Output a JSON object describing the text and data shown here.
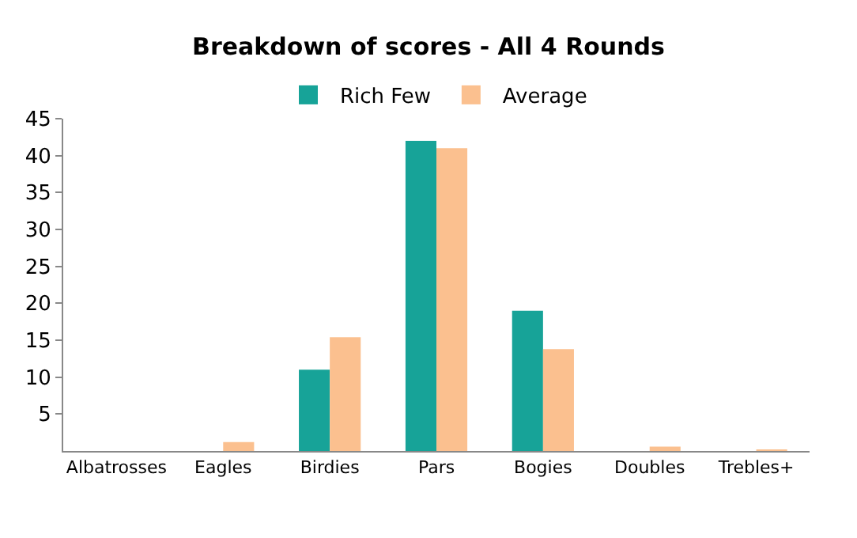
{
  "chart_data": {
    "type": "bar",
    "title": "Breakdown of scores - All 4 Rounds",
    "categories": [
      "Albatrosses",
      "Eagles",
      "Birdies",
      "Pars",
      "Bogies",
      "Doubles",
      "Trebles+"
    ],
    "series": [
      {
        "name": "Rich Few",
        "color": "#17a398",
        "values": [
          0,
          0,
          11,
          42,
          19,
          0,
          0
        ]
      },
      {
        "name": "Average",
        "color": "#fbc08f",
        "values": [
          0,
          1.2,
          15.4,
          41,
          13.8,
          0.6,
          0.2
        ]
      }
    ],
    "ylim": [
      0,
      45
    ],
    "yticks": [
      5,
      10,
      15,
      20,
      25,
      30,
      35,
      40,
      45
    ],
    "legend": "top"
  }
}
